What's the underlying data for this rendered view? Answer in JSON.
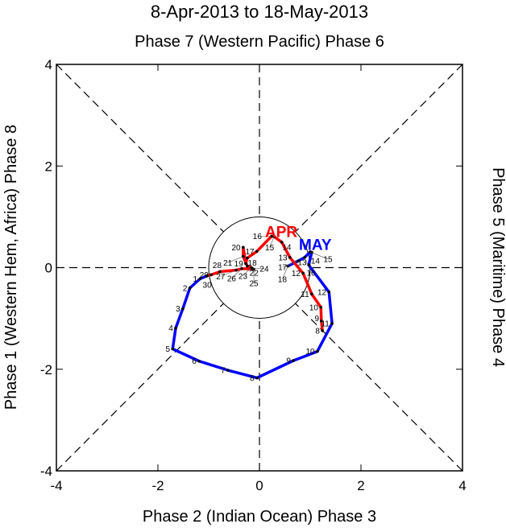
{
  "chart_data": {
    "type": "line",
    "title": "8-Apr-2013 to 18-May-2013",
    "top_label": "Phase 7 (Western Pacific) Phase 6",
    "bottom_label": "Phase 2 (Indian Ocean) Phase 3",
    "left_label": "Phase 1 (Western Hem, Africa) Phase 8",
    "right_label": "Phase 5 (Maritime) Phase 4",
    "xlim": [
      -4,
      4
    ],
    "ylim": [
      -4,
      4
    ],
    "x_ticks": [
      "-4",
      "-2",
      "0",
      "2",
      "4"
    ],
    "y_ticks": [
      "-4",
      "-2",
      "0",
      "2",
      "4"
    ],
    "series": [
      {
        "name": "APR",
        "color": "#ff0000",
        "points": [
          {
            "day": "8",
            "x": 1.24,
            "y": -1.24
          },
          {
            "day": "9",
            "x": 1.22,
            "y": -1.05
          },
          {
            "day": "10",
            "x": 1.21,
            "y": -0.78
          },
          {
            "day": "11",
            "x": 1.03,
            "y": -0.52
          },
          {
            "day": "12",
            "x": 0.86,
            "y": -0.11
          },
          {
            "day": "13",
            "x": 0.6,
            "y": 0.2
          },
          {
            "day": "14",
            "x": 0.44,
            "y": 0.5
          },
          {
            "day": "15",
            "x": 0.29,
            "y": 0.61
          },
          {
            "day": "16",
            "x": 0.24,
            "y": 0.62
          },
          {
            "day": "17",
            "x": -0.05,
            "y": 0.32
          },
          {
            "day": "18",
            "x": -0.24,
            "y": 0.19
          },
          {
            "day": "19",
            "x": -0.27,
            "y": 0.08
          },
          {
            "day": "20",
            "x": -0.32,
            "y": 0.4
          },
          {
            "day": "21",
            "x": -0.32,
            "y": 0.22
          },
          {
            "day": "22",
            "x": -0.24,
            "y": 0.03
          },
          {
            "day": "23",
            "x": -0.16,
            "y": 0.0
          },
          {
            "day": "24",
            "x": -0.14,
            "y": -0.02
          },
          {
            "day": "25",
            "x": -0.11,
            "y": -0.03
          },
          {
            "day": "26",
            "x": -0.35,
            "y": -0.02
          },
          {
            "day": "27",
            "x": -0.46,
            "y": -0.05
          },
          {
            "day": "28",
            "x": -0.78,
            "y": -0.08
          },
          {
            "day": "29",
            "x": -0.95,
            "y": -0.14
          },
          {
            "day": "30",
            "x": -1.03,
            "y": -0.16
          }
        ]
      },
      {
        "name": "MAY",
        "color": "#0000ff",
        "points": [
          {
            "day": "1",
            "x": -1.17,
            "y": -0.22
          },
          {
            "day": "2",
            "x": -1.37,
            "y": -0.4
          },
          {
            "day": "3",
            "x": -1.51,
            "y": -0.81
          },
          {
            "day": "4",
            "x": -1.65,
            "y": -1.19
          },
          {
            "day": "5",
            "x": -1.71,
            "y": -1.6
          },
          {
            "day": "6",
            "x": -1.19,
            "y": -1.84
          },
          {
            "day": "7",
            "x": -0.62,
            "y": -2.02
          },
          {
            "day": "8",
            "x": -0.05,
            "y": -2.17
          },
          {
            "day": "9",
            "x": 0.67,
            "y": -1.83
          },
          {
            "day": "10",
            "x": 1.14,
            "y": -1.65
          },
          {
            "day": "11",
            "x": 1.43,
            "y": -1.1
          },
          {
            "day": "12",
            "x": 1.37,
            "y": -0.48
          },
          {
            "day": "13",
            "x": 0.97,
            "y": 0.05
          },
          {
            "day": "14",
            "x": 1.03,
            "y": 0.3
          },
          {
            "day": "15",
            "x": 1.0,
            "y": 0.31
          },
          {
            "day": "16",
            "x": 0.89,
            "y": 0.2
          },
          {
            "day": "17",
            "x": 0.76,
            "y": 0.13
          },
          {
            "day": "18",
            "x": 0.56,
            "y": 0.03
          }
        ]
      }
    ],
    "month_labels": [
      {
        "text": "APR",
        "color": "#ff0000",
        "x": 0.43,
        "y": 0.6
      },
      {
        "text": "MAY",
        "color": "#0000ff",
        "x": 1.1,
        "y": 0.35
      }
    ]
  }
}
